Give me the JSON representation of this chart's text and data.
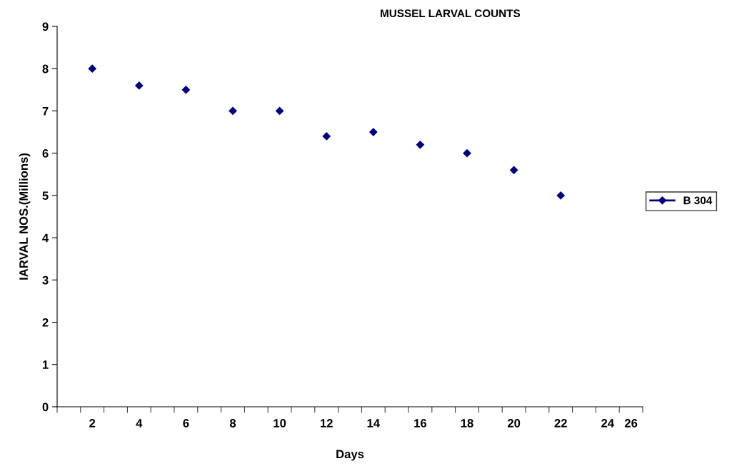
{
  "chart_data": {
    "type": "scatter",
    "title": "MUSSEL LARVAL COUNTS",
    "xlabel": "Days",
    "ylabel": "IARVAL NOS.(Millions)",
    "categories": [
      null,
      "2",
      null,
      "4",
      null,
      "6",
      null,
      "8",
      null,
      "10",
      null,
      "12",
      null,
      "14",
      null,
      "16",
      null,
      "18",
      null,
      "20",
      null,
      "22",
      null,
      "24",
      "26"
    ],
    "series": [
      {
        "name": "B 304",
        "color": "#000080",
        "values": [
          null,
          8,
          null,
          7.6,
          null,
          7.5,
          null,
          7,
          null,
          7,
          null,
          6.4,
          null,
          6.5,
          null,
          6.2,
          null,
          6,
          null,
          5.6,
          null,
          5,
          null,
          null,
          null
        ]
      }
    ],
    "ylim": [
      0,
      9
    ],
    "yticks": [
      0,
      1,
      2,
      3,
      4,
      5,
      6,
      7,
      8,
      9
    ],
    "grid": false,
    "legend": "right",
    "marker": "diamond"
  }
}
